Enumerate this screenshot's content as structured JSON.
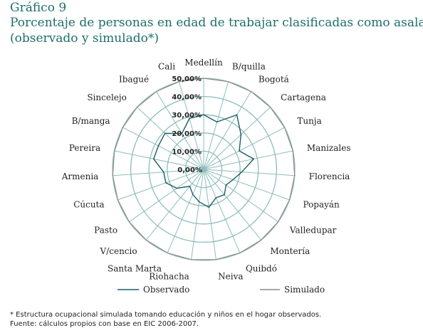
{
  "header": {
    "figure_number": "Gráfico 9",
    "title_line1": "Porcentaje de personas en edad de trabajar clasificadas como asalariados",
    "title_line2": "(observado y simulado*)"
  },
  "footnotes": {
    "note": "* Estructura ocupacional simulada tomando educación y niños en el hogar observados.",
    "source": "Fuente: cálculos propios con base en EIC 2006-2007."
  },
  "colors": {
    "grid": "#8dbdbb",
    "observed": "#1c5e63",
    "simulated": "#8a8a8a",
    "title": "#1c6f6a"
  },
  "chart_data": {
    "type": "radar",
    "categories": [
      "Medellín",
      "B/quilla",
      "Bogotá",
      "Cartagena",
      "Tunja",
      "Manizales",
      "Florencia",
      "Popayán",
      "Valledupar",
      "Montería",
      "Quibdó",
      "Neiva",
      "Riohacha",
      "Santa Marta",
      "V/cencio",
      "Pasto",
      "Cúcuta",
      "Armenia",
      "Pereira",
      "B/manga",
      "Sincelejo",
      "Ibagué",
      "Cali"
    ],
    "axis_ticks": [
      "0,00%",
      "10,00%",
      "20,00%",
      "30,00%",
      "40,00%",
      "50,00%"
    ],
    "rlim": [
      0,
      50
    ],
    "series": [
      {
        "name": "Observado",
        "values": [
          30,
          27,
          35,
          28,
          22,
          28,
          21,
          17,
          15,
          18,
          17,
          21,
          18,
          15,
          12,
          18,
          22,
          22,
          28,
          28,
          29,
          23,
          29
        ]
      },
      {
        "name": "Simulado",
        "values": [
          50,
          50,
          50,
          50,
          50,
          50,
          50,
          50,
          50,
          50,
          50,
          50,
          50,
          50,
          50,
          50,
          50,
          50,
          50,
          50,
          50,
          50,
          50
        ]
      }
    ],
    "legend_position": "bottom"
  }
}
